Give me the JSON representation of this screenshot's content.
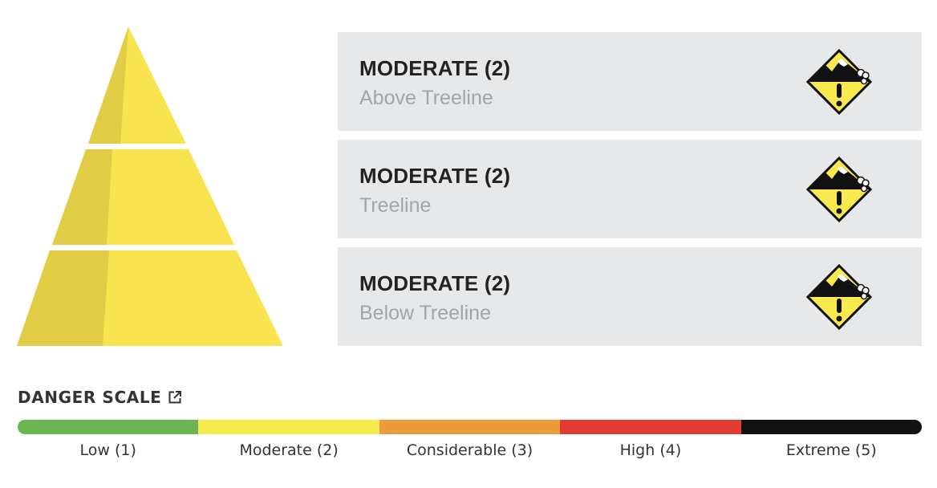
{
  "ratings": [
    {
      "title": "MODERATE (2)",
      "elevation": "Above Treeline",
      "icon": "moderate-danger-icon"
    },
    {
      "title": "MODERATE (2)",
      "elevation": "Treeline",
      "icon": "moderate-danger-icon"
    },
    {
      "title": "MODERATE (2)",
      "elevation": "Below Treeline",
      "icon": "moderate-danger-icon"
    }
  ],
  "pyramid": {
    "color_light": "#f9e34f",
    "color_shade": "#e0cc45",
    "icon": "danger-pyramid"
  },
  "danger_scale": {
    "heading": "DANGER SCALE",
    "link_icon": "external-link-icon",
    "levels": [
      {
        "label": "Low (1)",
        "color": "#6ab655"
      },
      {
        "label": "Moderate (2)",
        "color": "#f8ea4e"
      },
      {
        "label": "Considerable (3)",
        "color": "#ec9b3b"
      },
      {
        "label": "High (4)",
        "color": "#e13b32"
      },
      {
        "label": "Extreme (5)",
        "color": "#111111"
      }
    ]
  }
}
